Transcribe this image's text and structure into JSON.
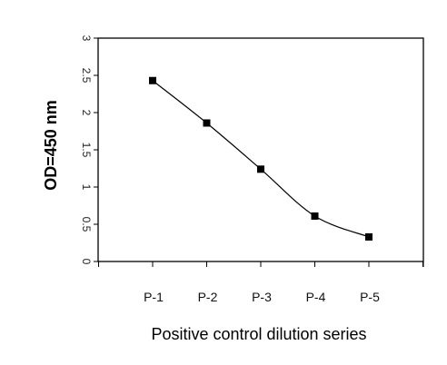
{
  "chart_data": {
    "type": "line",
    "categories": [
      "P-1",
      "P-2",
      "P-3",
      "P-4",
      "P-5"
    ],
    "series": [
      {
        "values": [
          2.43,
          1.86,
          1.24,
          0.61,
          0.33
        ]
      }
    ],
    "xlabel": "Positive control dilution series",
    "ylabel": "OD=450 nm",
    "ylim": [
      0,
      3
    ],
    "yticks": [
      "0",
      "0.5",
      "1",
      "1.5",
      "2",
      "2.5",
      "3"
    ],
    "grid": false,
    "marker": "square",
    "line_style": "smooth",
    "colors": {
      "line": "#000000",
      "marker": "#000000",
      "axis": "#000000"
    }
  }
}
